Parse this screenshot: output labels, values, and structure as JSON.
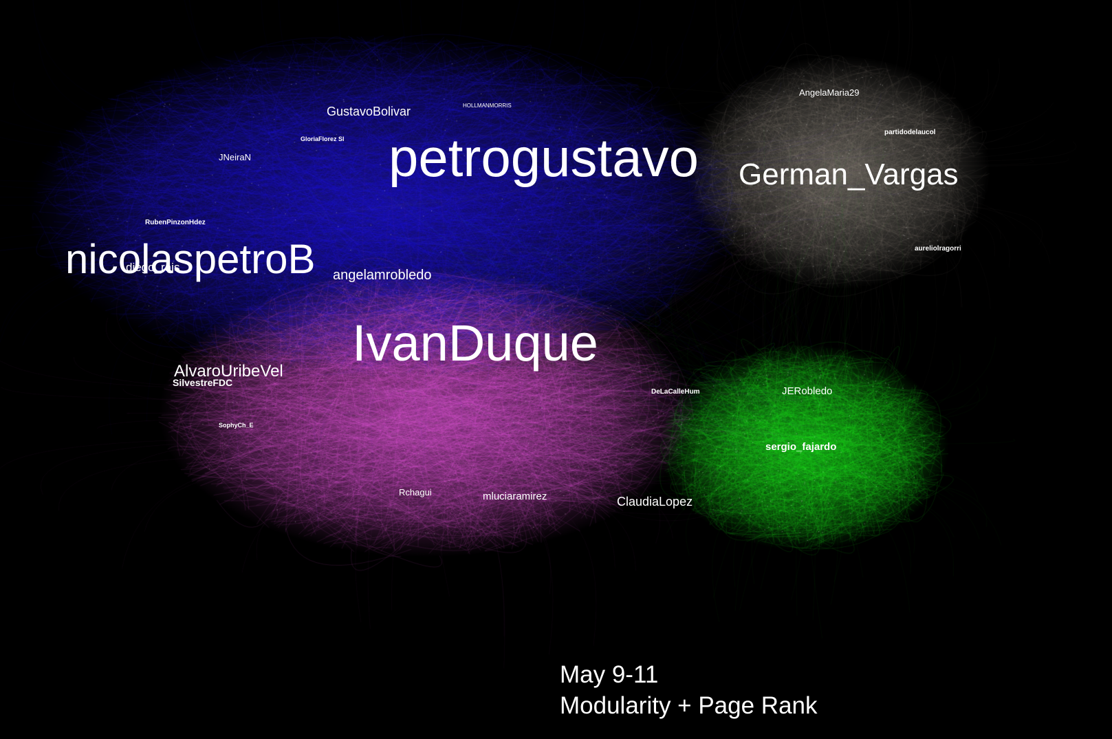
{
  "clusters": [
    {
      "name": "blue-cluster",
      "color": "#2a1cf0"
    },
    {
      "name": "pink-cluster",
      "color": "#f25ce6"
    },
    {
      "name": "gray-cluster",
      "color": "#9a948a"
    },
    {
      "name": "green-cluster",
      "color": "#1cf01c"
    }
  ],
  "labels": {
    "petrogustavo": "petrogustavo",
    "german_vargas": "German_Vargas",
    "nicolaspetrob": "nicolaspetroB",
    "ivanduque": "IvanDuque",
    "gustavobolivar": "GustavoBolivar",
    "hollmanmorris": "HOLLMANMORRIS",
    "gloriaflorez": "GloriaFlorez Sl",
    "jneiran": "JNeiraN",
    "rubenpinzonhdez": "RubenPinzonHdez",
    "diego_rais": "diego_rais",
    "angelamrobledo": "angelamrobledo",
    "alvarouribevel": "AlvaroUribeVel",
    "silvestrefdc": "SilvestreFDC",
    "sophych_e": "SophyCh_E",
    "rchagui": "Rchagui",
    "mluciaramirez": "mluciaramirez",
    "delacallehum": "DeLaCalleHum",
    "claudialopez": "ClaudiaLopez",
    "jerobledo": "JERobledo",
    "sergio_fajardo": "sergio_fajardo",
    "angelamaria29": "AngelaMaria29",
    "partidodelaucol": "partidodelaucol",
    "aureliolragorri": "aureliolragorri"
  },
  "caption": {
    "line1": "May 9-11",
    "line2": "Modularity +  Page Rank"
  }
}
